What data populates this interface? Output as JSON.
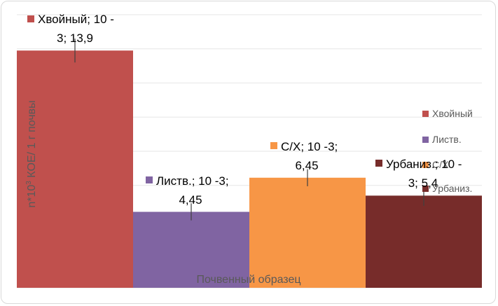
{
  "chart_data": {
    "type": "bar",
    "title": "",
    "xlabel": "Почвенный образец",
    "ylabel_pre": "n*10",
    "ylabel_sup": "3",
    "ylabel_post": " КОЕ/ 1 г почвы",
    "ylim": [
      0,
      16
    ],
    "grid": true,
    "legend_placement": "right",
    "categories": [
      "Хвойный",
      "Листв.",
      "С/Х",
      "Урбаниз."
    ],
    "values": [
      13.9,
      4.45,
      6.45,
      5.4
    ],
    "errors": [
      0.7,
      0.5,
      0.5,
      0.6
    ],
    "colors": [
      "#c0504d",
      "#8064a2",
      "#f79646",
      "#772c2a"
    ],
    "data_labels": [
      [
        "Хвойный; 10 -",
        "3; 13,9"
      ],
      [
        "Листв.; 10 -3;",
        "4,45"
      ],
      [
        "С/Х; 10 -3;",
        "6,45"
      ],
      [
        "Урбаниз.; 10 -",
        "3; 5,4"
      ]
    ],
    "legend": [
      "Хвойный",
      "Листв.",
      "С/Х",
      "Урбаниз."
    ]
  }
}
